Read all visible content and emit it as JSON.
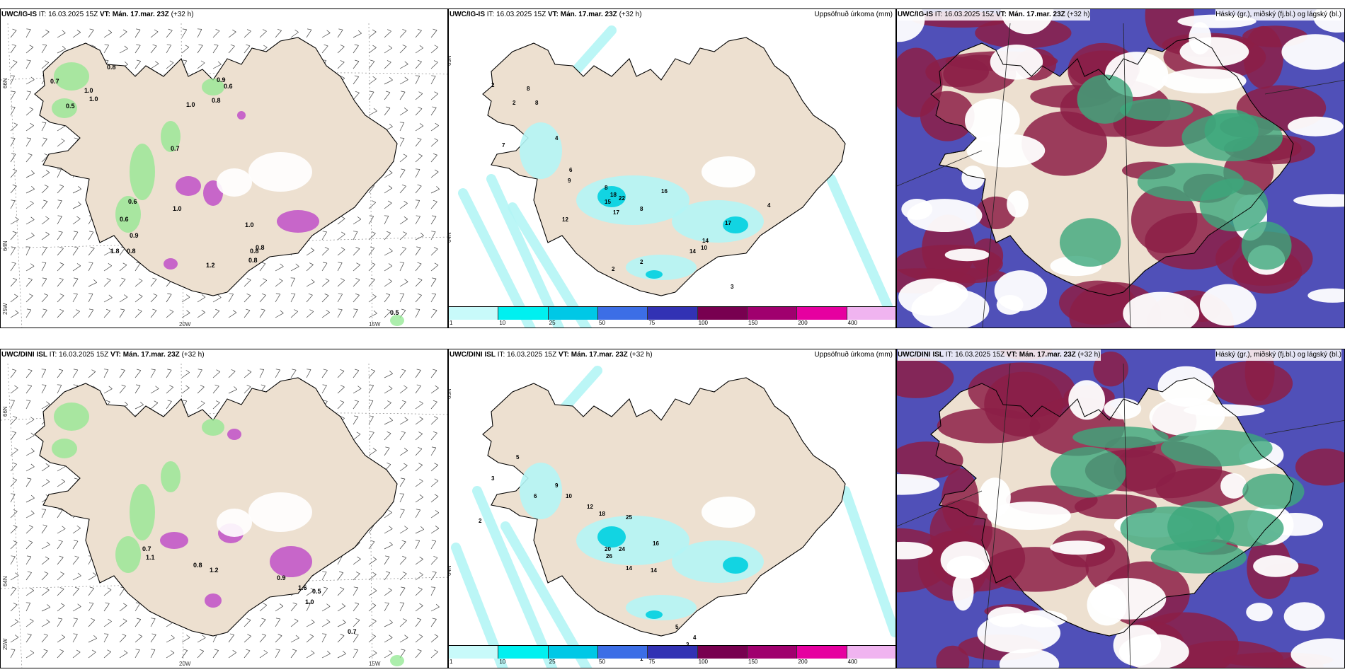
{
  "panels": [
    {
      "id": "p1",
      "model": "UWC/IG-IS",
      "it": "IT: 16.03.2025 15Z",
      "vt_label": "VT:",
      "vt": "Mán. 17.mar. 23Z",
      "lead": "(+32 h)",
      "right": "",
      "kind": "wind"
    },
    {
      "id": "p2",
      "model": "UWC/IG-IS",
      "it": "IT: 16.03.2025 15Z",
      "vt_label": "VT:",
      "vt": "Mán. 17.mar. 23Z",
      "lead": "(+32 h)",
      "right": "Uppsöfnuð úrkoma (mm)",
      "kind": "precip"
    },
    {
      "id": "p3",
      "model": "UWC/IG-IS",
      "it": "IT: 16.03.2025 15Z",
      "vt_label": "VT:",
      "vt": "Mán. 17.mar. 23Z",
      "lead": "(+32 h)",
      "right": "Háský (gr.), miðský (fj.bl.) og lágský (bl.)",
      "kind": "cloud"
    },
    {
      "id": "p4",
      "model": "UWC/DINI ISL",
      "it": "IT: 16.03.2025 15Z",
      "vt_label": "VT:",
      "vt": "Mán. 17.mar. 23Z",
      "lead": "(+32 h)",
      "right": "",
      "kind": "wind"
    },
    {
      "id": "p5",
      "model": "UWC/DINI ISL",
      "it": "IT: 16.03.2025 15Z",
      "vt_label": "VT:",
      "vt": "Mán. 17.mar. 23Z",
      "lead": "(+32 h)",
      "right": "Uppsöfnuð úrkoma (mm)",
      "kind": "precip"
    },
    {
      "id": "p6",
      "model": "UWC/DINI ISL",
      "it": "IT: 16.03.2025 15Z",
      "vt_label": "VT:",
      "vt": "Mán. 17.mar. 23Z",
      "lead": "(+32 h)",
      "right": "Háský (gr.), miðský (fj.bl.) og lágský (bl.)",
      "kind": "cloud"
    }
  ],
  "colorbar": {
    "ticks": [
      "1",
      "10",
      "25",
      "50",
      "75",
      "100",
      "150",
      "200",
      "400"
    ],
    "colors": [
      "#c8fafa",
      "#00f0f0",
      "#00c8e6",
      "#3c6ee6",
      "#3232b4",
      "#780050",
      "#a0006e",
      "#e600a0",
      "#f0b4f0"
    ]
  },
  "graticule": {
    "lat_66": "66N",
    "lat_64": "64N",
    "lon_25": "25W",
    "lon_20": "20W",
    "lon_15": "15W"
  },
  "colors": {
    "land": "#ede0d0",
    "coast": "#000000",
    "wind_green": "#90e890",
    "purple": "#c050c8",
    "cloud_high": "#8c1e46",
    "cloud_mid": "#5050b8",
    "cloud_low": "#3ca87c"
  },
  "labels_p1": [
    "0.7",
    "0.5",
    "1.0",
    "1.0",
    "0.8",
    "0.9",
    "0.6",
    "1.0",
    "0.8",
    "0.7",
    "0.6",
    "1.8",
    "0.6",
    "0.9",
    "1.0",
    "0.8",
    "1.0",
    "0.8",
    "1.2",
    "0.8",
    "0.8",
    "0.5"
  ],
  "labels_p2": [
    "2",
    "2",
    "8",
    "8",
    "7",
    "4",
    "6",
    "9",
    "8",
    "18",
    "22",
    "17",
    "12",
    "15",
    "8",
    "16",
    "17",
    "14",
    "10",
    "14",
    "2",
    "2",
    "3",
    "4"
  ],
  "labels_p4": [
    "0.7",
    "1.1",
    "0.8",
    "1.2",
    "0.9",
    "1.6",
    "0.5",
    "1.0",
    "0.7"
  ],
  "labels_p5": [
    "2",
    "3",
    "5",
    "6",
    "9",
    "10",
    "12",
    "18",
    "25",
    "20",
    "24",
    "26",
    "16",
    "14",
    "14",
    "5",
    "4",
    "3",
    "1"
  ]
}
